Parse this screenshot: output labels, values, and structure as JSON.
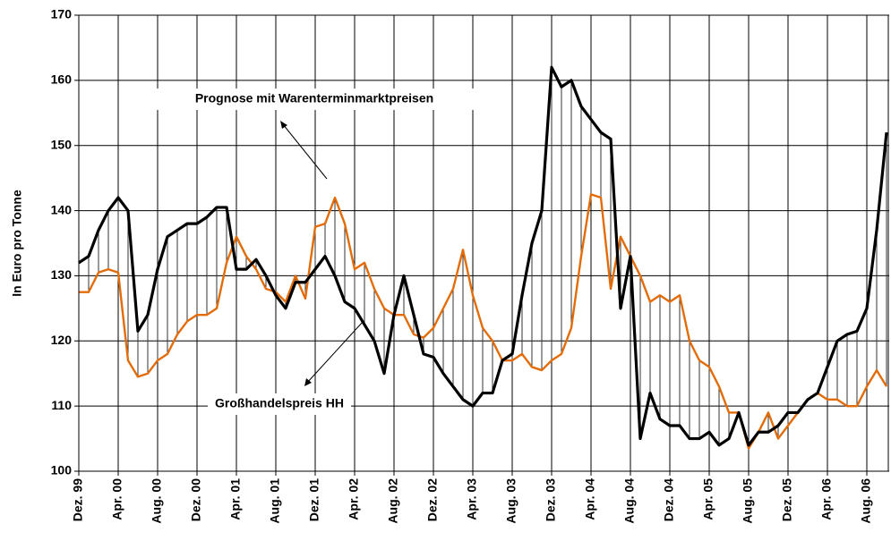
{
  "chart_data": {
    "type": "line",
    "y_label": "In Euro pro Tonne",
    "categories": [
      "Dez. 99",
      null,
      null,
      null,
      "Apr. 00",
      null,
      null,
      null,
      "Aug. 00",
      null,
      null,
      null,
      "Dez. 00",
      null,
      null,
      null,
      "Apr. 01",
      null,
      null,
      null,
      "Aug. 01",
      null,
      null,
      null,
      "Dez. 01",
      null,
      null,
      null,
      "Apr. 02",
      null,
      null,
      null,
      "Aug. 02",
      null,
      null,
      null,
      "Dez. 02",
      null,
      null,
      null,
      "Apr. 03",
      null,
      null,
      null,
      "Aug. 03",
      null,
      null,
      null,
      "Dez. 03",
      null,
      null,
      null,
      "Apr. 04",
      null,
      null,
      null,
      "Aug. 04",
      null,
      null,
      null,
      "Dez. 04",
      null,
      null,
      null,
      "Apr. 05",
      null,
      null,
      null,
      "Aug. 05",
      null,
      null,
      null,
      "Dez. 05",
      null,
      null,
      null,
      "Apr. 06",
      null,
      null,
      null,
      "Aug. 06",
      null,
      null
    ],
    "series": [
      {
        "name": "Großhandelspreis HH",
        "color": "#000000",
        "values": [
          132,
          133,
          137,
          140,
          142,
          140,
          121.5,
          124,
          131,
          136,
          137,
          138,
          138,
          139,
          140.5,
          140.5,
          131,
          131,
          132.5,
          130,
          127,
          125,
          129,
          129,
          131,
          133,
          130,
          126,
          125,
          122.5,
          120,
          115,
          124,
          130,
          124,
          118,
          117.5,
          115,
          113,
          111,
          110,
          112,
          112,
          117,
          118,
          127,
          135,
          140,
          162,
          159,
          160,
          156,
          154,
          152,
          151,
          125,
          133,
          105,
          112,
          108,
          107,
          107,
          105,
          105,
          106,
          104,
          105,
          109,
          104,
          106,
          106,
          107,
          109,
          109,
          111,
          112,
          116,
          120,
          121,
          121.5,
          125,
          137,
          152
        ]
      },
      {
        "name": "Prognose mit Warenterminmarktpreisen",
        "color": "#e36c0a",
        "values": [
          127.5,
          127.5,
          130.5,
          131,
          130.5,
          117,
          114.5,
          115,
          117,
          118,
          121,
          123,
          124,
          124,
          125,
          132,
          136,
          133,
          131,
          128,
          127.5,
          126,
          130,
          126.5,
          137.5,
          138,
          142,
          138,
          131,
          132,
          128,
          125,
          124,
          124,
          121,
          120.5,
          122,
          125,
          128,
          134,
          127,
          122,
          120,
          117,
          117,
          118,
          116,
          115.5,
          117,
          118,
          122,
          133,
          142.5,
          142,
          128,
          136,
          133,
          130,
          126,
          127,
          126,
          127,
          120,
          117,
          116,
          113,
          109,
          109,
          103.5,
          106,
          109,
          105,
          107,
          109,
          111,
          112,
          111,
          111,
          110,
          110,
          113,
          115.5,
          113
        ]
      }
    ],
    "ylim": [
      100,
      170
    ],
    "yticks": [
      100,
      110,
      120,
      130,
      140,
      150,
      160,
      170
    ],
    "grid": true
  }
}
